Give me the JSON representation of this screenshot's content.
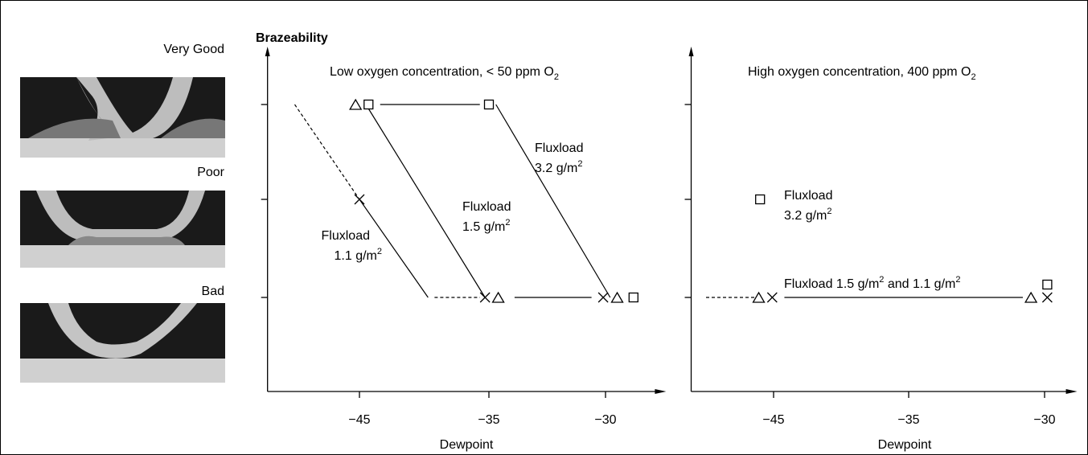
{
  "chart_data": {
    "type": "scatter",
    "ylabel": "Brazeability",
    "levels": [
      "Very Good",
      "Poor",
      "Bad"
    ],
    "panels": [
      {
        "xlabel": "Dewpoint",
        "xlim": [
          -52.1,
          -27.4
        ],
        "xticks": [
          {
            "value": -45,
            "label": "−45"
          },
          {
            "value": -35,
            "label": "−35"
          },
          {
            "value": -30,
            "label": "−30"
          }
        ],
        "series": [
          {
            "marker": "triangle",
            "x": [
              -45.3,
              -34.6,
              -29.5
            ],
            "y": [
              "Very Good",
              "Bad",
              "Bad"
            ]
          },
          {
            "marker": "square",
            "x": [
              -44.3,
              -35,
              -28.8
            ],
            "y": [
              "Very Good",
              "Very Good",
              "Bad"
            ]
          },
          {
            "marker": "cross",
            "x": [
              -45,
              -35.3,
              -30.1
            ],
            "y": [
              "Poor",
              "Bad",
              "Bad"
            ]
          }
        ],
        "segments": [
          {
            "x": [
              -50,
              -45
            ],
            "y": [
              "Very Good",
              "Poor"
            ],
            "dashed": true
          },
          {
            "x": [
              -45,
              -39.7
            ],
            "y": [
              "Poor",
              "Bad"
            ],
            "dashed": false
          },
          {
            "x": [
              -39.2,
              -35.7
            ],
            "y": [
              "Bad",
              "Bad"
            ],
            "dashed": true
          },
          {
            "x": [
              -44.5,
              -35.3
            ],
            "y": [
              "Very Good",
              "Bad"
            ],
            "dashed": false
          },
          {
            "x": [
              -34.7,
              -29.8
            ],
            "y": [
              "Very Good",
              "Bad"
            ],
            "dashed": false
          },
          {
            "x": [
              -43.4,
              -35.7
            ],
            "y": [
              "Very Good",
              "Very Good"
            ],
            "dashed": false
          },
          {
            "x": [
              -33.9,
              -30.6
            ],
            "y": [
              "Bad",
              "Bad"
            ],
            "dashed": false
          }
        ],
        "annotations": [
          {
            "lines": [
              [
                {
                  "text": "Low oxygen concentration, < 50 ppm O"
                },
                {
                  "sub": "2"
                }
              ]
            ]
          },
          {
            "lines": [
              [
                {
                  "text": "Fluxload"
                }
              ],
              [
                {
                  "text": "3.2 g/m"
                },
                {
                  "sup": "2"
                }
              ]
            ]
          },
          {
            "lines": [
              [
                {
                  "text": "Fluxload"
                }
              ],
              [
                {
                  "text": "1.5 g/m"
                },
                {
                  "sup": "2"
                }
              ]
            ]
          },
          {
            "lines": [
              [
                {
                  "text": "Fluxload"
                }
              ],
              [
                {
                  "text": "1.1 g/m"
                },
                {
                  "sup": "2"
                }
              ]
            ]
          }
        ]
      },
      {
        "xlabel": "Dewpoint",
        "xlim": [
          -51.1,
          -28.8
        ],
        "xticks": [
          {
            "value": -45,
            "label": "−45"
          },
          {
            "value": -35,
            "label": "−35"
          },
          {
            "value": -30,
            "label": "−30"
          }
        ],
        "series": [
          {
            "marker": "triangle",
            "x": [
              -46.1,
              -30.5
            ],
            "y": [
              "Bad",
              "Bad"
            ]
          },
          {
            "marker": "square",
            "x": [
              -46,
              -29.9
            ],
            "y": [
              "Poor",
              "Bad"
            ]
          },
          {
            "marker": "cross",
            "x": [
              -45.1,
              -29.9
            ],
            "y": [
              "Bad",
              "Bad"
            ]
          }
        ],
        "segments": [
          {
            "x": [
              -50,
              -46.4
            ],
            "y": [
              "Bad",
              "Bad"
            ],
            "dashed": true
          },
          {
            "x": [
              -44.2,
              -30.8
            ],
            "y": [
              "Bad",
              "Bad"
            ],
            "dashed": false
          }
        ],
        "annotations": [
          {
            "lines": [
              [
                {
                  "text": "High oxygen concentration, 400 ppm O"
                },
                {
                  "sub": "2"
                }
              ]
            ]
          },
          {
            "lines": [
              [
                {
                  "text": "Fluxload"
                }
              ],
              [
                {
                  "text": "3.2 g/m"
                },
                {
                  "sup": "2"
                }
              ]
            ]
          },
          {
            "lines": [
              [
                {
                  "text": "Fluxload 1.5 g/m"
                },
                {
                  "sup": "2"
                },
                {
                  "text": " and 1.1 g/m"
                },
                {
                  "sup": "2"
                }
              ]
            ]
          }
        ]
      }
    ]
  }
}
